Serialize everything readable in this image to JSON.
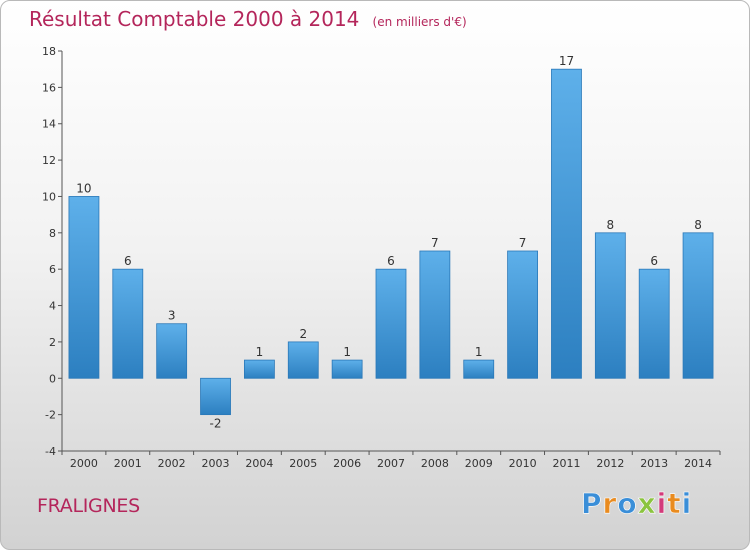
{
  "header": {
    "title": "Résultat Comptable 2000 à 2014",
    "subtitle": "(en milliers d'€)"
  },
  "footer": {
    "town": "FRALIGNES",
    "logo_letters": [
      "P",
      "r",
      "o",
      "x",
      "i",
      "t",
      "i"
    ]
  },
  "colors": {
    "title": "#b4265b",
    "bar_light": "#5eb0ea",
    "bar_dark": "#2c7fc0",
    "logo": [
      "#3a8ed8",
      "#e98b1f",
      "#3a8ed8",
      "#8bc43f",
      "#d33a7a",
      "#e98b1f",
      "#3a8ed8"
    ]
  },
  "chart_data": {
    "type": "bar",
    "title": "Résultat Comptable 2000 à 2014",
    "subtitle": "(en milliers d'€)",
    "categories": [
      "2000",
      "2001",
      "2002",
      "2003",
      "2004",
      "2005",
      "2006",
      "2007",
      "2008",
      "2009",
      "2010",
      "2011",
      "2012",
      "2013",
      "2014"
    ],
    "values": [
      10,
      6,
      3,
      -2,
      1,
      2,
      1,
      6,
      7,
      1,
      7,
      17,
      8,
      6,
      8
    ],
    "data_labels": [
      "10",
      "6",
      "3",
      "-2",
      "1",
      "2",
      "1",
      "6",
      "7",
      "1",
      "7",
      "17",
      "8",
      "6",
      "8"
    ],
    "yticks": [
      "-4",
      "-2",
      "0",
      "2",
      "4",
      "6",
      "8",
      "10",
      "12",
      "14",
      "16",
      "18"
    ],
    "ylim": [
      -4,
      18
    ],
    "grid": false
  }
}
